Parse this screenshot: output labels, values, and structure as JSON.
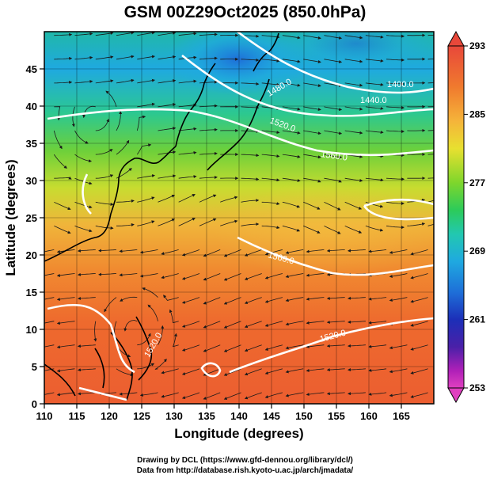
{
  "title": "GSM 00Z29Oct2025 (850.0hPa)",
  "axes": {
    "xlabel": "Longitude (degrees)",
    "ylabel": "Latitude  (degrees)",
    "x_ticks": [
      "110",
      "115",
      "120",
      "125",
      "130",
      "135",
      "140",
      "145",
      "150",
      "155",
      "160",
      "165"
    ],
    "y_ticks": [
      "0",
      "5",
      "10",
      "15",
      "20",
      "25",
      "30",
      "35",
      "40",
      "45"
    ],
    "x_range": [
      110,
      170
    ],
    "y_range": [
      0,
      50
    ]
  },
  "colorbar": {
    "ticks": [
      "293",
      "285",
      "277",
      "269",
      "261",
      "253"
    ],
    "range": [
      253,
      293
    ],
    "colors_top_to_bottom": [
      "#e8483a",
      "#f07a2e",
      "#f5b43a",
      "#e8e030",
      "#7ed62c",
      "#2ccb5a",
      "#22c8b0",
      "#1fa9e0",
      "#1e6fd8",
      "#1c2fb8",
      "#4a20a8",
      "#b020b8",
      "#e040c0"
    ]
  },
  "contour_labels": [
    "1400.0",
    "1440.0",
    "1480.0",
    "1520.0",
    "1560.0",
    "1560.0",
    "1520.0",
    "1520.0"
  ],
  "credits": {
    "line1": "Drawing by DCL (https://www.gfd-dennou.org/library/dcl/)",
    "line2": "Data from http://database.rish.kyoto-u.ac.jp/arch/jmadata/"
  },
  "colors": {
    "frame": "#000000",
    "contour": "#ffffff",
    "stream": "#1a1a1a"
  }
}
